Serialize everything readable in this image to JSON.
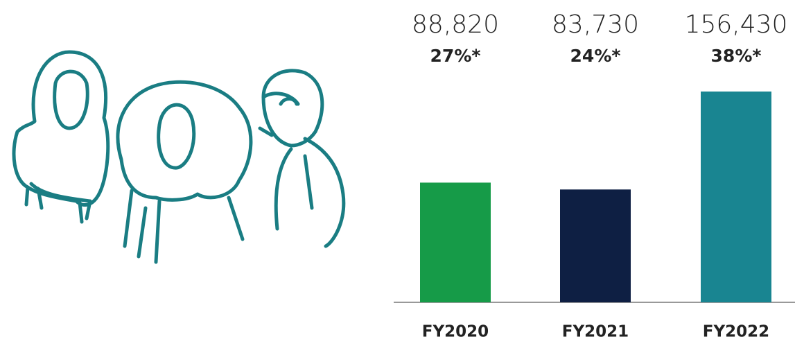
{
  "chart_data": {
    "type": "bar",
    "categories": [
      "FY2020",
      "FY2021",
      "FY2022"
    ],
    "values": [
      88820,
      83730,
      156430
    ],
    "value_labels": [
      "88,820",
      "83,730",
      "156,430"
    ],
    "annotations": [
      "27%*",
      "24%*",
      "38%*"
    ],
    "colors": [
      "#169b48",
      "#0e1f43",
      "#198591"
    ]
  }
}
